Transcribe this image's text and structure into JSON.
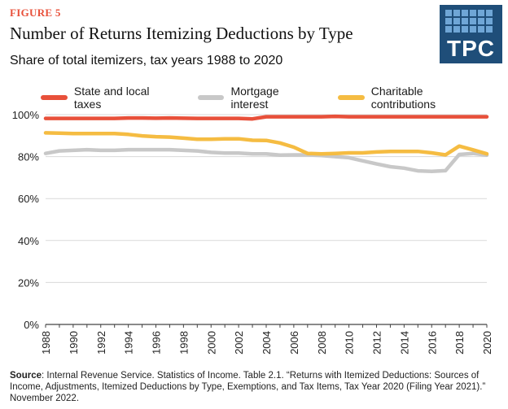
{
  "figure_label": "FIGURE 5",
  "logo_text": "TPC",
  "source_label": "Source",
  "source_text": ": Internal Revenue Service. Statistics of Income. Table 2.1. “Returns with Itemized Deductions:  Sources of Income, Adjustments, Itemized Deductions by Type, Exemptions, and Tax Items, Tax Year 2020 (Filing Year 2021).” November 2022.",
  "chart_data": {
    "type": "line",
    "title": "Number of Returns Itemizing Deductions by Type",
    "subtitle": "Share of total itemizers, tax years 1988 to 2020",
    "xlabel": "",
    "ylabel": "",
    "x": [
      1988,
      1989,
      1990,
      1991,
      1992,
      1993,
      1994,
      1995,
      1996,
      1997,
      1998,
      1999,
      2000,
      2001,
      2002,
      2003,
      2004,
      2005,
      2006,
      2007,
      2008,
      2009,
      2010,
      2011,
      2012,
      2013,
      2014,
      2015,
      2016,
      2017,
      2018,
      2019,
      2020
    ],
    "x_ticks": [
      "1988",
      "1990",
      "1992",
      "1994",
      "1996",
      "1998",
      "2000",
      "2002",
      "2004",
      "2006",
      "2008",
      "2010",
      "2012",
      "2014",
      "2016",
      "2018",
      "2020"
    ],
    "y_ticks": [
      "0%",
      "20%",
      "40%",
      "60%",
      "80%",
      "100%"
    ],
    "ylim": [
      0,
      100
    ],
    "grid": "horizontal",
    "legend_position": "top",
    "series": [
      {
        "name": "State and local taxes",
        "color": "#e8503a",
        "values": [
          98.2,
          98.2,
          98.2,
          98.2,
          98.2,
          98.2,
          98.4,
          98.4,
          98.3,
          98.4,
          98.3,
          98.2,
          98.2,
          98.2,
          98.2,
          98.0,
          99.0,
          99.0,
          99.0,
          99.0,
          99.0,
          99.2,
          99.0,
          99.0,
          99.0,
          99.0,
          99.0,
          99.0,
          99.0,
          99.0,
          99.0,
          99.0,
          99.0
        ]
      },
      {
        "name": "Mortgage interest",
        "color": "#c8c8c8",
        "values": [
          81.5,
          82.7,
          83.0,
          83.3,
          83.0,
          83.0,
          83.3,
          83.3,
          83.3,
          83.3,
          83.0,
          82.7,
          82.0,
          81.7,
          81.7,
          81.3,
          81.3,
          80.7,
          80.8,
          80.8,
          80.5,
          80.0,
          79.5,
          78.0,
          76.5,
          75.2,
          74.5,
          73.2,
          73.0,
          73.3,
          81.0,
          81.5,
          80.7
        ]
      },
      {
        "name": "Charitable contributions",
        "color": "#f5bc42",
        "values": [
          91.3,
          91.2,
          91.0,
          91.0,
          91.0,
          91.0,
          90.6,
          89.9,
          89.5,
          89.3,
          88.8,
          88.3,
          88.3,
          88.5,
          88.5,
          87.8,
          87.7,
          86.5,
          84.5,
          81.5,
          81.3,
          81.5,
          81.8,
          81.8,
          82.2,
          82.5,
          82.5,
          82.5,
          81.8,
          80.8,
          85.0,
          83.2,
          81.3
        ]
      }
    ]
  }
}
